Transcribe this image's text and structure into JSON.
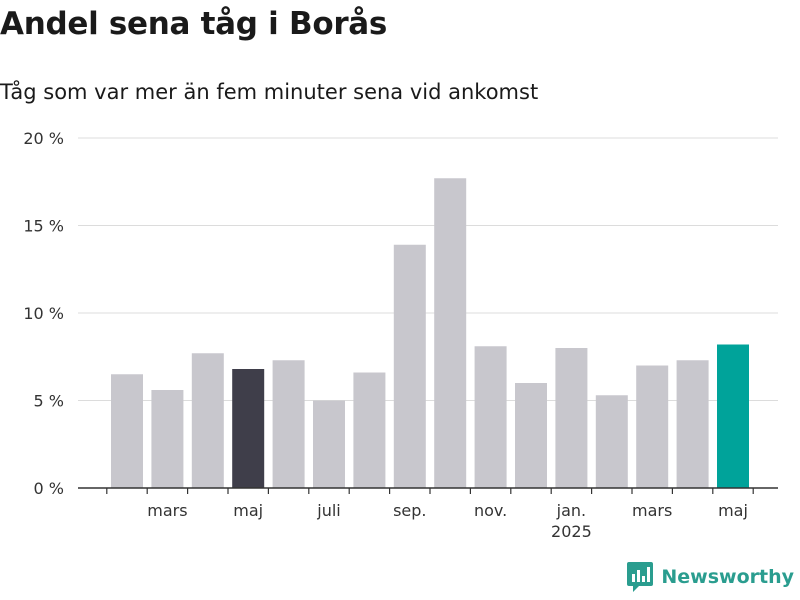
{
  "title": "Andel sena tåg i Borås",
  "subtitle": "Tåg som var mer än fem minuter sena vid ankomst",
  "brand": {
    "name": "Newsworthy",
    "color": "#2a9d8f"
  },
  "chart_data": {
    "type": "bar",
    "title": "Andel sena tåg i Borås",
    "subtitle": "Tåg som var mer än fem minuter sena vid ankomst",
    "x": [
      "2024-02",
      "2024-03",
      "2024-04",
      "2024-05",
      "2024-06",
      "2024-07",
      "2024-08",
      "2024-09",
      "2024-10",
      "2024-11",
      "2024-12",
      "2025-01",
      "2025-02",
      "2025-03",
      "2025-04",
      "2025-05"
    ],
    "values": [
      6.5,
      5.6,
      7.7,
      6.8,
      7.3,
      5.0,
      6.6,
      13.9,
      17.7,
      8.1,
      6.0,
      8.0,
      5.3,
      7.0,
      7.3,
      8.2
    ],
    "ylim": [
      0,
      20
    ],
    "yticks": [
      0,
      5,
      10,
      15,
      20
    ],
    "ytick_labels": [
      "0 %",
      "5 %",
      "10 %",
      "15 %",
      "20 %"
    ],
    "xtick_labels": [
      {
        "at": "2024-03",
        "label": "mars"
      },
      {
        "at": "2024-05",
        "label": "maj"
      },
      {
        "at": "2024-07",
        "label": "juli"
      },
      {
        "at": "2024-09",
        "label": "sep."
      },
      {
        "at": "2024-11",
        "label": "nov."
      },
      {
        "at": "2025-01",
        "label": "jan.",
        "sublabel": "2025"
      },
      {
        "at": "2025-03",
        "label": "mars"
      },
      {
        "at": "2025-05",
        "label": "maj"
      }
    ],
    "colors": {
      "default": "#c8c7cd",
      "highlight_dark": "#3f3e4a",
      "highlight_latest": "#00a39a"
    },
    "highlight_dark": [
      "2024-05"
    ],
    "highlight_latest": [
      "2025-05"
    ],
    "grid": true
  }
}
